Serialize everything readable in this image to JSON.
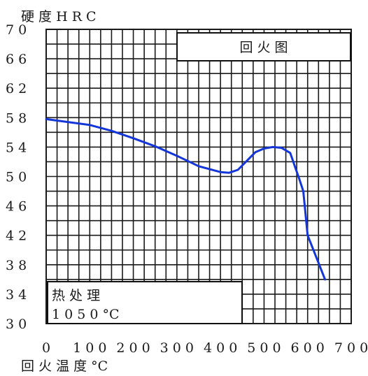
{
  "chart_data": {
    "type": "line",
    "title": "回 火 图",
    "ylabel": "硬 度   H R C",
    "xlabel": "回 火 温 度     °C",
    "xlim": [
      0,
      700
    ],
    "ylim": [
      30,
      70
    ],
    "x_ticks": [
      "0",
      "100",
      "200",
      "300",
      "400",
      "500",
      "600",
      "700"
    ],
    "y_ticks": [
      "70",
      "66",
      "62",
      "58",
      "54",
      "50",
      "46",
      "42",
      "38",
      "34",
      "30"
    ],
    "grid": true,
    "series": [
      {
        "values": [
          [
            0,
            57.8
          ],
          [
            50,
            57.4
          ],
          [
            100,
            57.0
          ],
          [
            150,
            56.2
          ],
          [
            200,
            55.2
          ],
          [
            250,
            54.1
          ],
          [
            300,
            52.8
          ],
          [
            350,
            51.4
          ],
          [
            400,
            50.6
          ],
          [
            420,
            50.5
          ],
          [
            440,
            50.9
          ],
          [
            460,
            52.1
          ],
          [
            480,
            53.3
          ],
          [
            500,
            53.8
          ],
          [
            520,
            54.0
          ],
          [
            540,
            53.9
          ],
          [
            560,
            53.2
          ],
          [
            570,
            51.5
          ],
          [
            580,
            49.8
          ],
          [
            590,
            48.0
          ],
          [
            600,
            42.0
          ],
          [
            620,
            39.0
          ],
          [
            640,
            36.0
          ]
        ]
      }
    ],
    "annotation": {
      "heat_treatment_label": "热 处 理",
      "heat_treatment_value": "1 0 5 0  °C"
    },
    "colors": {
      "line": "#1436d8",
      "grid": "#1a1a1a"
    }
  }
}
